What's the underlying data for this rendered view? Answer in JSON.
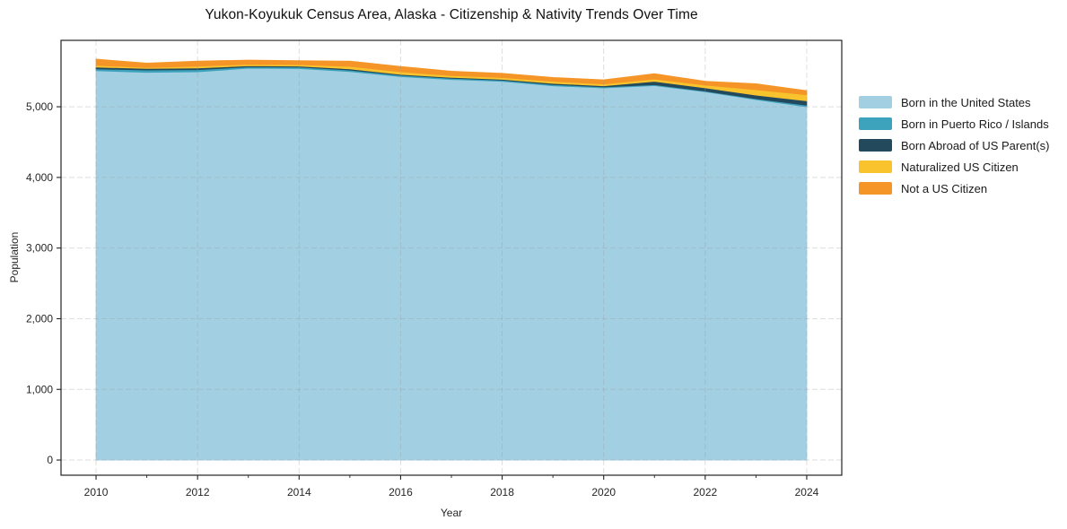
{
  "title": "Yukon-Koyukuk Census Area, Alaska - Citizenship & Nativity Trends Over Time",
  "axes": {
    "x_label": "Year",
    "y_label": "Population"
  },
  "chart_data": {
    "type": "area",
    "stacked": true,
    "title": "Yukon-Koyukuk Census Area, Alaska - Citizenship & Nativity Trends Over Time",
    "xlabel": "Year",
    "ylabel": "Population",
    "grid": true,
    "legend_position": "right",
    "x": [
      2010,
      2011,
      2012,
      2013,
      2014,
      2015,
      2016,
      2017,
      2018,
      2019,
      2020,
      2021,
      2022,
      2023,
      2024
    ],
    "series": [
      {
        "name": "Born in the United States",
        "color": "#a3cfe3",
        "values": [
          5510,
          5486,
          5494,
          5545,
          5541,
          5498,
          5427,
          5385,
          5360,
          5296,
          5266,
          5300,
          5212,
          5101,
          5000
        ]
      },
      {
        "name": "Born in Puerto Rico / Islands",
        "color": "#3da2bc",
        "values": [
          26,
          34,
          30,
          20,
          20,
          21,
          18,
          18,
          15,
          18,
          15,
          12,
          9,
          13,
          21
        ]
      },
      {
        "name": "Born Abroad of US Parent(s)",
        "color": "#23495c",
        "values": [
          25,
          22,
          25,
          15,
          15,
          17,
          13,
          13,
          13,
          17,
          15,
          48,
          46,
          51,
          63
        ]
      },
      {
        "name": "Naturalized US Citizen",
        "color": "#f9c32e",
        "values": [
          25,
          13,
          25,
          20,
          20,
          34,
          36,
          25,
          25,
          29,
          26,
          32,
          38,
          76,
          85
        ]
      },
      {
        "name": "Not a US Citizen",
        "color": "#f59527",
        "values": [
          88,
          63,
          73,
          60,
          56,
          76,
          76,
          62,
          60,
          55,
          59,
          77,
          55,
          85,
          59
        ]
      }
    ],
    "x_ticks_major": [
      2010,
      2012,
      2014,
      2016,
      2018,
      2020,
      2022,
      2024
    ],
    "x_ticks_minor": [
      2011,
      2013,
      2015,
      2017,
      2019,
      2021,
      2023
    ],
    "y_ticks": [
      {
        "value": 0,
        "label": "0"
      },
      {
        "value": 1000,
        "label": "1,000"
      },
      {
        "value": 2000,
        "label": "2,000"
      },
      {
        "value": 3000,
        "label": "3,000"
      },
      {
        "value": 4000,
        "label": "4,000"
      },
      {
        "value": 5000,
        "label": "5,000"
      }
    ],
    "xlim": [
      2009.31,
      2024.69
    ],
    "ylim": [
      -215,
      5940
    ],
    "colors": {
      "spine": "#222222",
      "tick": "#222222",
      "tick_label": "#262626",
      "gridline": "#999999"
    }
  }
}
